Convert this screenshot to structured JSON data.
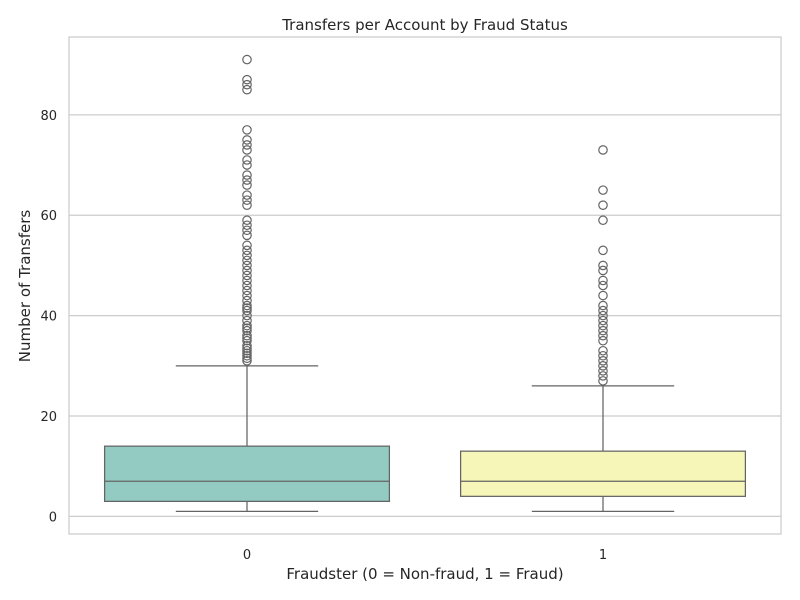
{
  "chart_data": {
    "type": "box",
    "title": "Transfers per Account by Fraud Status",
    "xlabel": "Fraudster (0 = Non-fraud, 1 = Fraud)",
    "ylabel": "Number of Transfers",
    "categories": [
      "0",
      "1"
    ],
    "ylim": [
      -3.5,
      95.5
    ],
    "yticks": [
      0,
      20,
      40,
      60,
      80
    ],
    "grid": "y",
    "box_stroke": "#646464",
    "grid_color": "#cccccc",
    "frame_color": "#cccccc",
    "boxes": [
      {
        "category": "0",
        "color": "#93cbc2",
        "whisker_low": 1,
        "q1": 3,
        "median": 7,
        "q3": 14,
        "whisker_high": 30,
        "outliers": [
          31,
          31.5,
          32,
          32.5,
          33,
          33.5,
          34,
          35,
          35.5,
          36,
          37,
          37.5,
          38,
          39,
          40,
          41,
          41.5,
          42,
          43,
          44,
          45,
          46,
          47,
          48,
          49,
          50,
          51,
          52,
          53,
          54,
          56,
          57,
          58,
          59,
          62,
          63,
          64,
          66,
          67,
          68,
          70,
          71,
          73,
          74,
          75,
          77,
          85,
          86,
          87,
          91
        ]
      },
      {
        "category": "1",
        "color": "#f6f6b8",
        "whisker_low": 1,
        "q1": 4,
        "median": 7,
        "q3": 13,
        "whisker_high": 26,
        "outliers": [
          27,
          28,
          29,
          30,
          31,
          32,
          33,
          35,
          36,
          37,
          38,
          39,
          40,
          41,
          42,
          44,
          46,
          47,
          49,
          50,
          53,
          59,
          62,
          65,
          73
        ]
      }
    ]
  }
}
